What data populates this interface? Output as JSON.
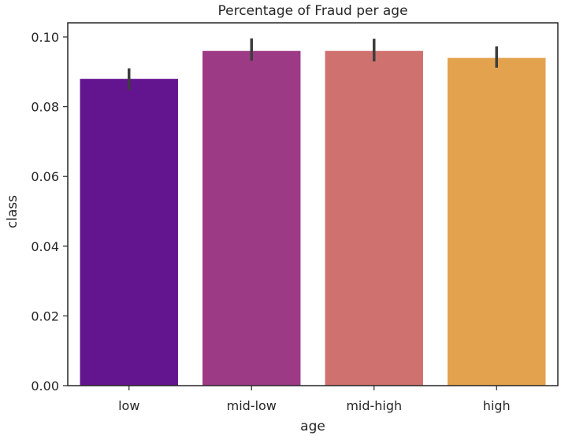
{
  "chart_data": {
    "type": "bar",
    "title": "Percentage of Fraud per age",
    "xlabel": "age",
    "ylabel": "class",
    "categories": [
      "low",
      "mid-low",
      "mid-high",
      "high"
    ],
    "values": [
      0.088,
      0.096,
      0.096,
      0.094
    ],
    "error_bars": [
      {
        "low": 0.0848,
        "high": 0.091
      },
      {
        "low": 0.0932,
        "high": 0.0996
      },
      {
        "low": 0.093,
        "high": 0.0995
      },
      {
        "low": 0.0912,
        "high": 0.0973
      }
    ],
    "colors": [
      "#63148f",
      "#9c3a86",
      "#cf716f",
      "#e3a24e"
    ],
    "ylim": [
      0,
      0.1
    ],
    "yticks": [
      0.0,
      0.02,
      0.04,
      0.06,
      0.08,
      0.1
    ],
    "ytick_labels": [
      "0.00",
      "0.02",
      "0.04",
      "0.06",
      "0.08",
      "0.10"
    ],
    "grid": false,
    "legend": "none"
  }
}
